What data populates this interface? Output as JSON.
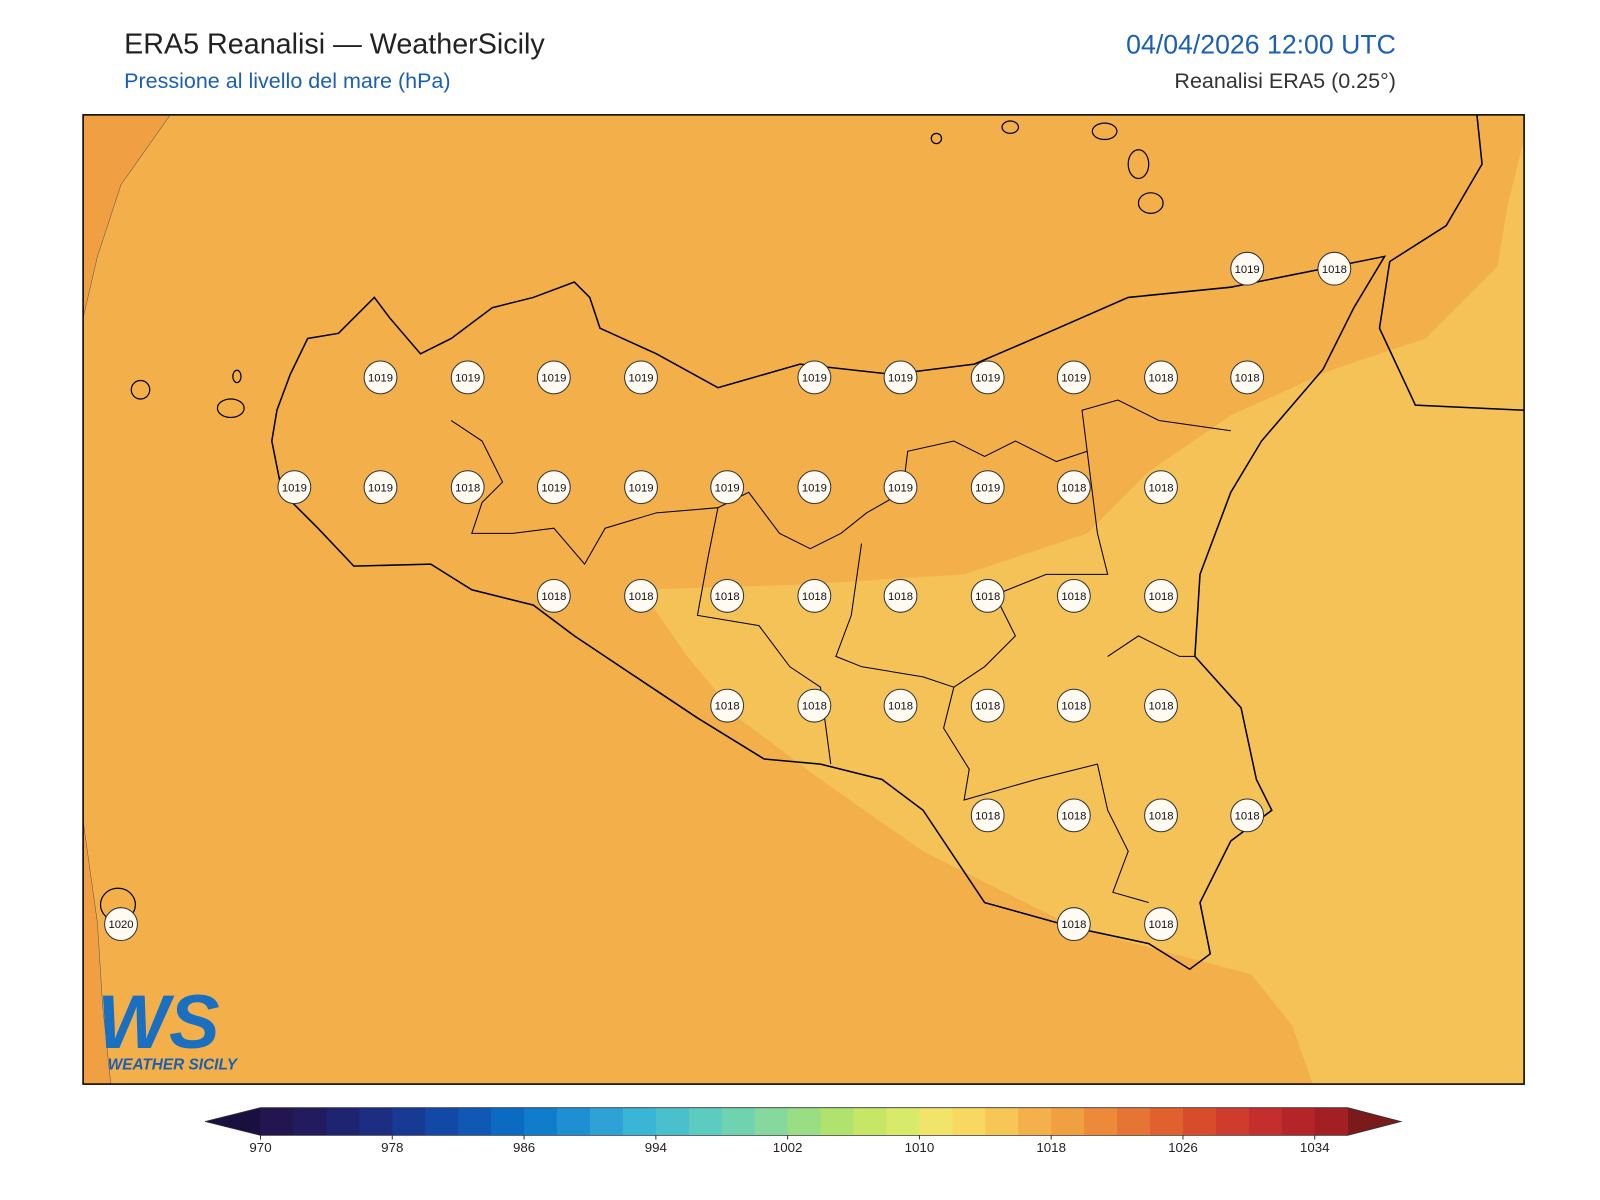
{
  "header": {
    "title": "ERA5 Reanalisi — WeatherSicily",
    "subtitle": "Pressione al livello del mare (hPa)",
    "datetime": "04/04/2026 12:00 UTC",
    "source": "Reanalisi ERA5 (0.25°)"
  },
  "stations": [
    1019,
    1018,
    1019,
    1019,
    1019,
    1019,
    1019,
    1019,
    1019,
    1019,
    1018,
    1018,
    1019,
    1019,
    1018,
    1019,
    1019,
    1019,
    1019,
    1019,
    1019,
    1018,
    1018,
    1018,
    1018,
    1018,
    1018,
    1018,
    1018,
    1018,
    1018,
    1018,
    1018,
    1018,
    1018,
    1018,
    1018,
    1018,
    1018,
    1018,
    1018,
    1020,
    1018,
    1018
  ],
  "logo": {
    "mark": "WS",
    "name": "WEATHER SICILY"
  },
  "colorbar": {
    "range": [
      970,
      1036
    ],
    "ticks": [
      970,
      978,
      986,
      994,
      1002,
      1010,
      1018,
      1026,
      1034
    ],
    "colors": [
      "#231550",
      "#221b5e",
      "#1f2470",
      "#1c2d82",
      "#173a94",
      "#1249a6",
      "#0f58b4",
      "#0b6ac2",
      "#0f7ccc",
      "#1d8fd2",
      "#2ea2d6",
      "#3bb5d6",
      "#4ac0cc",
      "#5ccbc0",
      "#70d3b0",
      "#86d99c",
      "#9ade84",
      "#b0e26e",
      "#c6e666",
      "#d8ea6a",
      "#f0e46a",
      "#f8d860",
      "#f6c656",
      "#f4b04a",
      "#f0a040",
      "#ec8a3a",
      "#e67434",
      "#e0602e",
      "#d84c2c",
      "#d03c2c",
      "#c42e2c",
      "#b42428",
      "#a21f24"
    ],
    "under_color": "#1a1040",
    "over_color": "#7a1a1a"
  }
}
